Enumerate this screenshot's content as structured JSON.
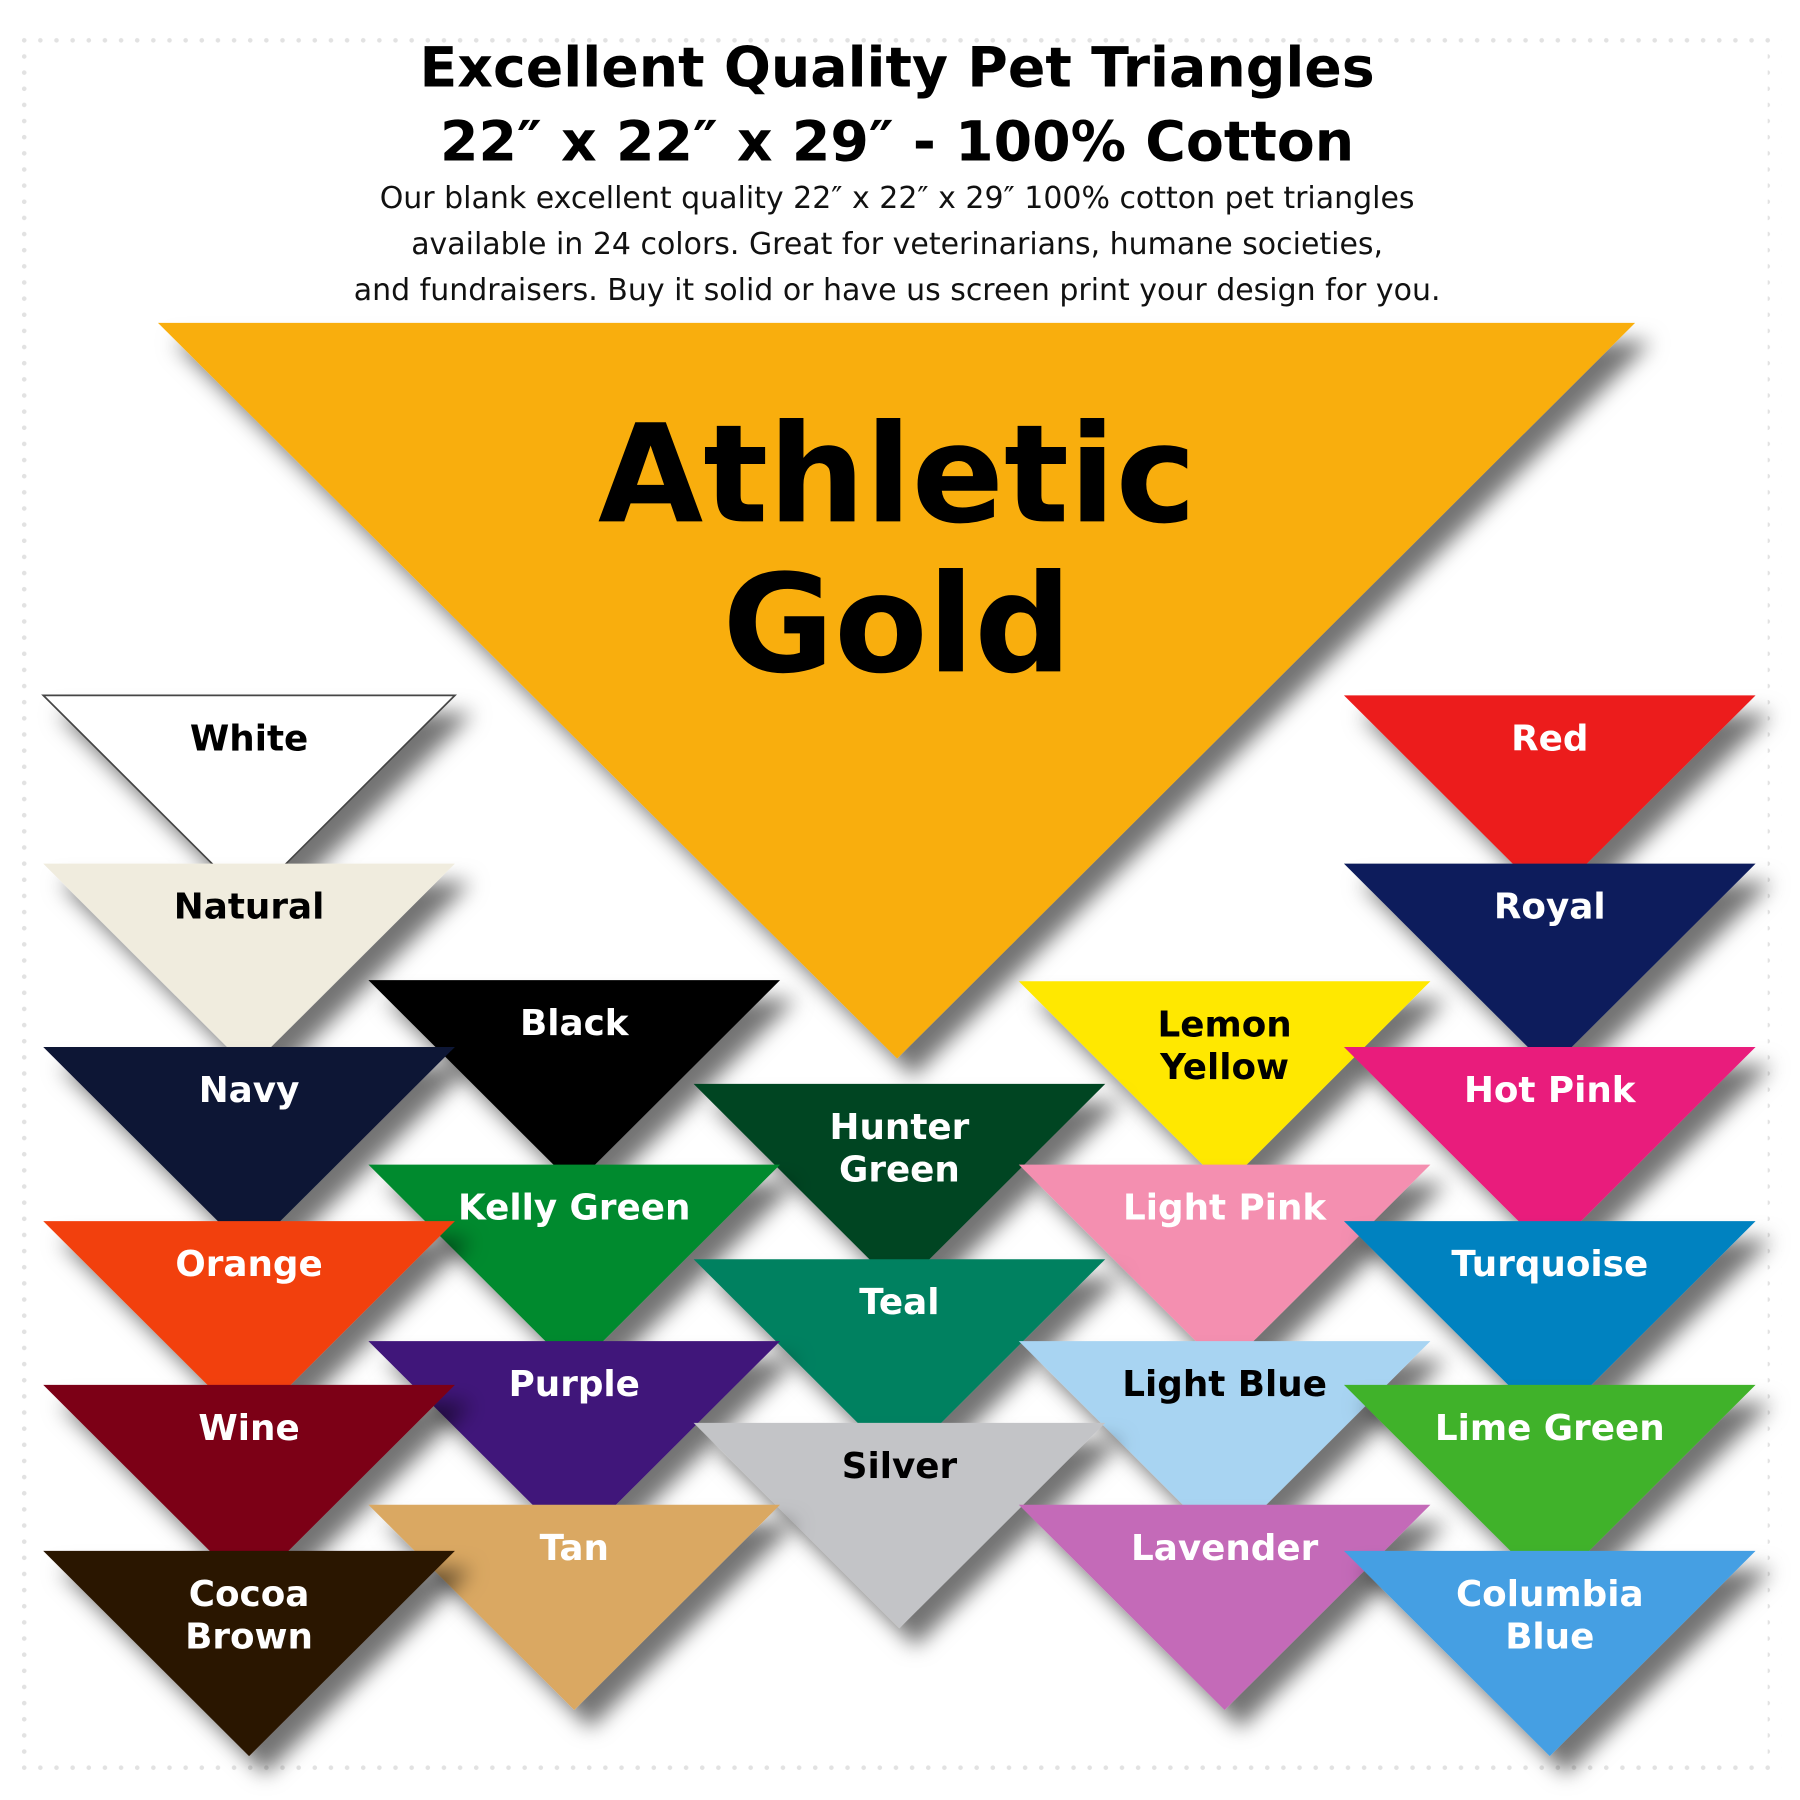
{
  "header": {
    "title": "Excellent Quality Pet Triangles",
    "subtitle": "22″ x 22″ x 29″ - 100% Cotton",
    "description": [
      "Our blank excellent quality 22″ x 22″  x 29″ 100% cotton pet triangles",
      "available in 24 colors.  Great for veterinarians, humane societies,",
      "and fundraisers.  Buy it solid or have us screen print your design for you."
    ]
  },
  "featured": {
    "lines": [
      "Athletic",
      "Gold"
    ],
    "color": "#f9ae08",
    "text_color": "#000000"
  },
  "swatches": [
    {
      "lines": [
        "White"
      ],
      "color": "#ffffff",
      "text_color": "#000000"
    },
    {
      "lines": [
        "Red"
      ],
      "color": "#ec1c1c",
      "text_color": "#ffffff"
    },
    {
      "lines": [
        "Natural"
      ],
      "color": "#f0ecde",
      "text_color": "#000000"
    },
    {
      "lines": [
        "Royal"
      ],
      "color": "#0c1f5c",
      "text_color": "#ffffff"
    },
    {
      "lines": [
        "Black"
      ],
      "color": "#000000",
      "text_color": "#ffffff"
    },
    {
      "lines": [
        "Lemon",
        "Yellow"
      ],
      "color": "#ffe800",
      "text_color": "#000000"
    },
    {
      "lines": [
        "Navy"
      ],
      "color": "#0b1434",
      "text_color": "#ffffff"
    },
    {
      "lines": [
        "Hot Pink"
      ],
      "color": "#e91e7b",
      "text_color": "#ffffff"
    },
    {
      "lines": [
        "Hunter",
        "Green"
      ],
      "color": "#064424",
      "text_color": "#ffffff"
    },
    {
      "lines": [
        "Kelly Green"
      ],
      "color": "#008a2e",
      "text_color": "#ffffff"
    },
    {
      "lines": [
        "Light Pink"
      ],
      "color": "#f48fb0",
      "text_color": "#ffffff"
    },
    {
      "lines": [
        "Orange"
      ],
      "color": "#f2400f",
      "text_color": "#ffffff"
    },
    {
      "lines": [
        "Turquoise"
      ],
      "color": "#0082c0",
      "text_color": "#ffffff"
    },
    {
      "lines": [
        "Teal"
      ],
      "color": "#008160",
      "text_color": "#ffffff"
    },
    {
      "lines": [
        "Purple"
      ],
      "color": "#3f147a",
      "text_color": "#ffffff"
    },
    {
      "lines": [
        "Light Blue"
      ],
      "color": "#a8d4f2",
      "text_color": "#000000"
    },
    {
      "lines": [
        "Wine"
      ],
      "color": "#7c0019",
      "text_color": "#ffffff"
    },
    {
      "lines": [
        "Lime Green"
      ],
      "color": "#40b229",
      "text_color": "#ffffff"
    },
    {
      "lines": [
        "Silver"
      ],
      "color": "#c3c4c7",
      "text_color": "#000000"
    },
    {
      "lines": [
        "Tan"
      ],
      "color": "#daa862",
      "text_color": "#ffffff"
    },
    {
      "lines": [
        "Lavender"
      ],
      "color": "#c46ab8",
      "text_color": "#ffffff"
    },
    {
      "lines": [
        "Cocoa",
        "Brown"
      ],
      "color": "#2b1706",
      "text_color": "#ffffff"
    },
    {
      "lines": [
        "Columbia",
        "Blue"
      ],
      "color": "#449fe3",
      "text_color": "#ffffff"
    }
  ]
}
